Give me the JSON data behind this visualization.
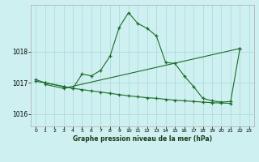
{
  "title": "Graphe pression niveau de la mer (hPa)",
  "bg_color": "#cff0f0",
  "grid_color": "#aadddd",
  "line_color": "#1a6b2a",
  "spine_color": "#aaaaaa",
  "xlim": [
    -0.5,
    23.5
  ],
  "ylim": [
    1015.6,
    1019.5
  ],
  "yticks": [
    1016,
    1017,
    1018
  ],
  "xticks": [
    0,
    1,
    2,
    3,
    4,
    5,
    6,
    7,
    8,
    9,
    10,
    11,
    12,
    13,
    14,
    15,
    16,
    17,
    18,
    19,
    20,
    21,
    22,
    23
  ],
  "series_main": {
    "x": [
      0,
      1,
      3,
      4,
      5,
      6,
      7,
      8,
      9,
      10,
      11,
      12,
      13,
      14,
      15,
      16,
      17,
      18,
      19,
      20,
      21,
      22
    ],
    "y": [
      1017.05,
      1017.0,
      1016.88,
      1016.82,
      1017.28,
      1017.22,
      1017.4,
      1017.85,
      1018.78,
      1019.25,
      1018.9,
      1018.75,
      1018.5,
      1017.65,
      1017.62,
      1017.22,
      1016.88,
      1016.5,
      1016.42,
      1016.38,
      1016.4,
      1018.1
    ]
  },
  "series_flat": {
    "x": [
      0,
      1,
      3,
      4,
      5,
      6,
      7,
      8,
      9,
      10,
      11,
      12,
      13,
      14,
      15,
      16,
      17,
      18,
      19,
      20,
      21
    ],
    "y": [
      1017.1,
      1017.0,
      1016.88,
      1016.82,
      1016.78,
      1016.74,
      1016.7,
      1016.66,
      1016.62,
      1016.58,
      1016.55,
      1016.52,
      1016.5,
      1016.47,
      1016.44,
      1016.42,
      1016.4,
      1016.38,
      1016.36,
      1016.35,
      1016.34
    ]
  },
  "series_triangle": {
    "x": [
      1,
      3,
      22
    ],
    "y": [
      1016.95,
      1016.82,
      1018.1
    ]
  }
}
